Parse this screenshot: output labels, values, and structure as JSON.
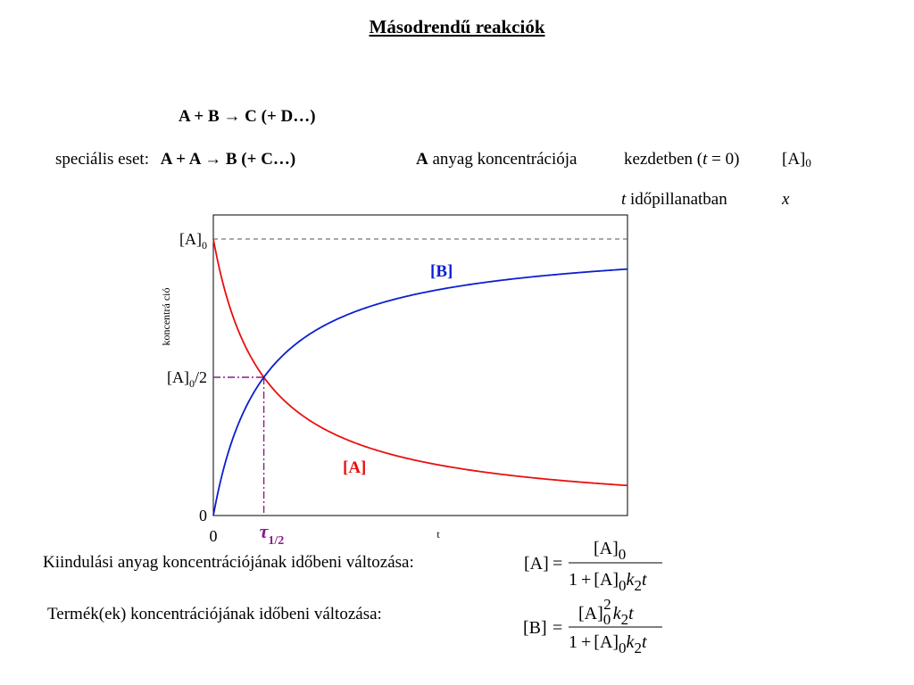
{
  "title": "Másodrendű reakciók",
  "reaction": "A + B → C (+ D…)",
  "special_case": {
    "label": "speciális eset:",
    "reaction": "A + A → B (+ C…)"
  },
  "concentration": {
    "subject": "A",
    "text": "anyag koncentrációja",
    "initial_prefix": "kezdetben (",
    "initial_var": "t",
    "initial_suffix": " = 0)",
    "initial_value": "[A]",
    "initial_value_sub": "0",
    "time_var": "t",
    "time_text": "időpillanatban",
    "time_value": "x"
  },
  "chart_data": {
    "type": "line",
    "title": "",
    "xlabel": "t",
    "ylabel": "koncentrá ció",
    "y_ticks": [
      {
        "label": "[A]",
        "sub": "0",
        "suffix": ""
      },
      {
        "label": "[A]",
        "sub": "0",
        "suffix": "/2"
      },
      {
        "label": "0",
        "sub": "",
        "suffix": ""
      }
    ],
    "x_ticks": [
      "0"
    ],
    "half_life_label": "τ",
    "half_life_sub": "1/2",
    "series": [
      {
        "name": "[A]",
        "color": "#e8100e",
        "formula": "A0/(1+A0*k*t)"
      },
      {
        "name": "[B]",
        "color": "#0a1fd0",
        "formula": "A0*A0*k*t/(1+A0*k*t)"
      }
    ],
    "A0": 1,
    "half_life_t": 1,
    "t_range": [
      0,
      8.2
    ],
    "ylim": [
      0,
      1.0
    ],
    "reference_line": "[A]0 dashed horizontal"
  },
  "equations": {
    "kin_label": "Kiindulási anyag koncentrációjának időbeni változása:",
    "term_label": "Termék(ek) koncentrációjának időbeni változása:",
    "A_lhs": "[A]",
    "B_lhs": "[B]",
    "eq": "=",
    "A_num": "[A]",
    "A_num_sub": "0",
    "B_num": "[A]",
    "B_num_sub": "0",
    "B_num_sup": "2",
    "B_num_rest": "k",
    "B_num_rest_sub": "2",
    "B_num_t": "t",
    "den_one": "1",
    "den_plus": "+",
    "den_A": "[A]",
    "den_A_sub": "0",
    "den_k": "k",
    "den_k_sub": "2",
    "den_t": "t"
  }
}
